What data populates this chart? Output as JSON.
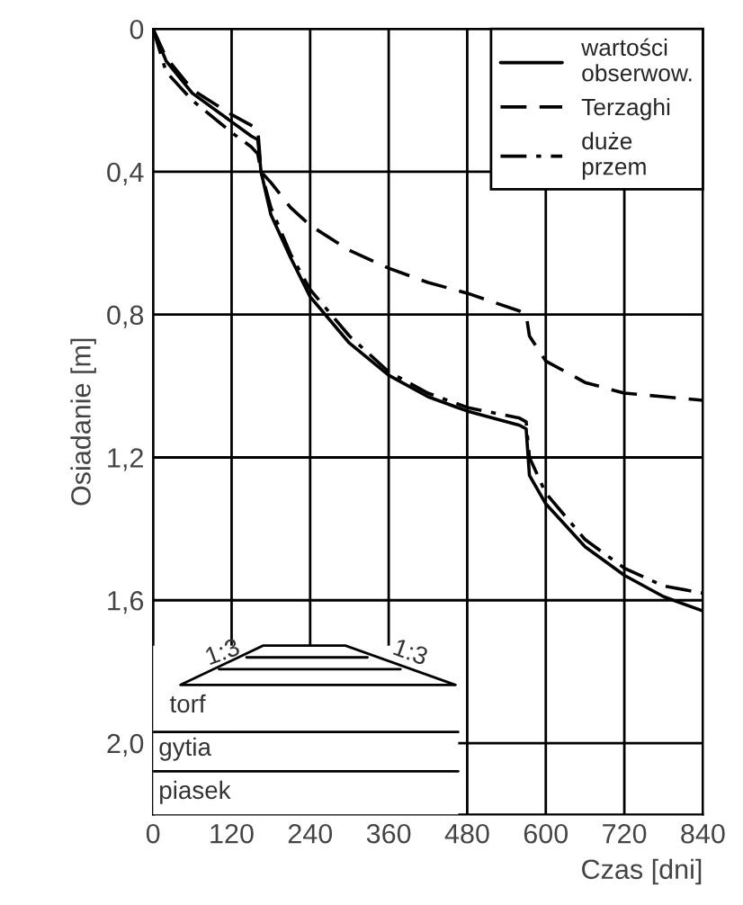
{
  "chart_data": {
    "type": "line",
    "xlabel": "Czas [dni]",
    "ylabel": "Osiadanie [m]",
    "x": [
      0,
      20,
      60,
      120,
      150,
      160,
      165,
      180,
      210,
      240,
      300,
      360,
      420,
      480,
      560,
      570,
      575,
      600,
      660,
      720,
      780,
      840
    ],
    "series": [
      {
        "name": "wartości\nobserwow.",
        "color": "#000000",
        "line_style": "solid",
        "values": [
          0,
          0.09,
          0.18,
          0.26,
          0.3,
          0.31,
          0.4,
          0.52,
          0.64,
          0.75,
          0.88,
          0.97,
          1.03,
          1.07,
          1.11,
          1.12,
          1.25,
          1.33,
          1.45,
          1.53,
          1.59,
          1.63
        ]
      },
      {
        "name": "Terzaghi",
        "color": "#000000",
        "line_style": "dashed",
        "values": [
          0,
          0.08,
          0.17,
          0.24,
          0.27,
          0.28,
          0.4,
          0.43,
          0.5,
          0.55,
          0.62,
          0.67,
          0.71,
          0.74,
          0.79,
          0.8,
          0.86,
          0.93,
          0.99,
          1.02,
          1.03,
          1.04
        ]
      },
      {
        "name": "duże\nprzem",
        "color": "#000000",
        "line_style": "dashdot",
        "values": [
          0,
          0.12,
          0.2,
          0.29,
          0.33,
          0.35,
          0.4,
          0.5,
          0.63,
          0.73,
          0.86,
          0.96,
          1.02,
          1.06,
          1.09,
          1.1,
          1.2,
          1.3,
          1.43,
          1.51,
          1.56,
          1.58
        ]
      }
    ],
    "xlim": [
      0,
      840
    ],
    "xticks": [
      0,
      120,
      240,
      360,
      480,
      600,
      720,
      840
    ],
    "ylim": [
      2.2,
      0
    ],
    "yticks": [
      0,
      {
        "value": 0.4,
        "label": "0,4"
      },
      {
        "value": 0.8,
        "label": "0,8"
      },
      {
        "value": 1.2,
        "label": "1,2"
      },
      {
        "value": 1.6,
        "label": "1,6"
      },
      {
        "value": 2.0,
        "label": "2,0"
      }
    ],
    "grid": true,
    "legend": "top right",
    "annotations": [
      "1:3",
      "1:3",
      "torf",
      "gytia",
      "piasek"
    ]
  }
}
